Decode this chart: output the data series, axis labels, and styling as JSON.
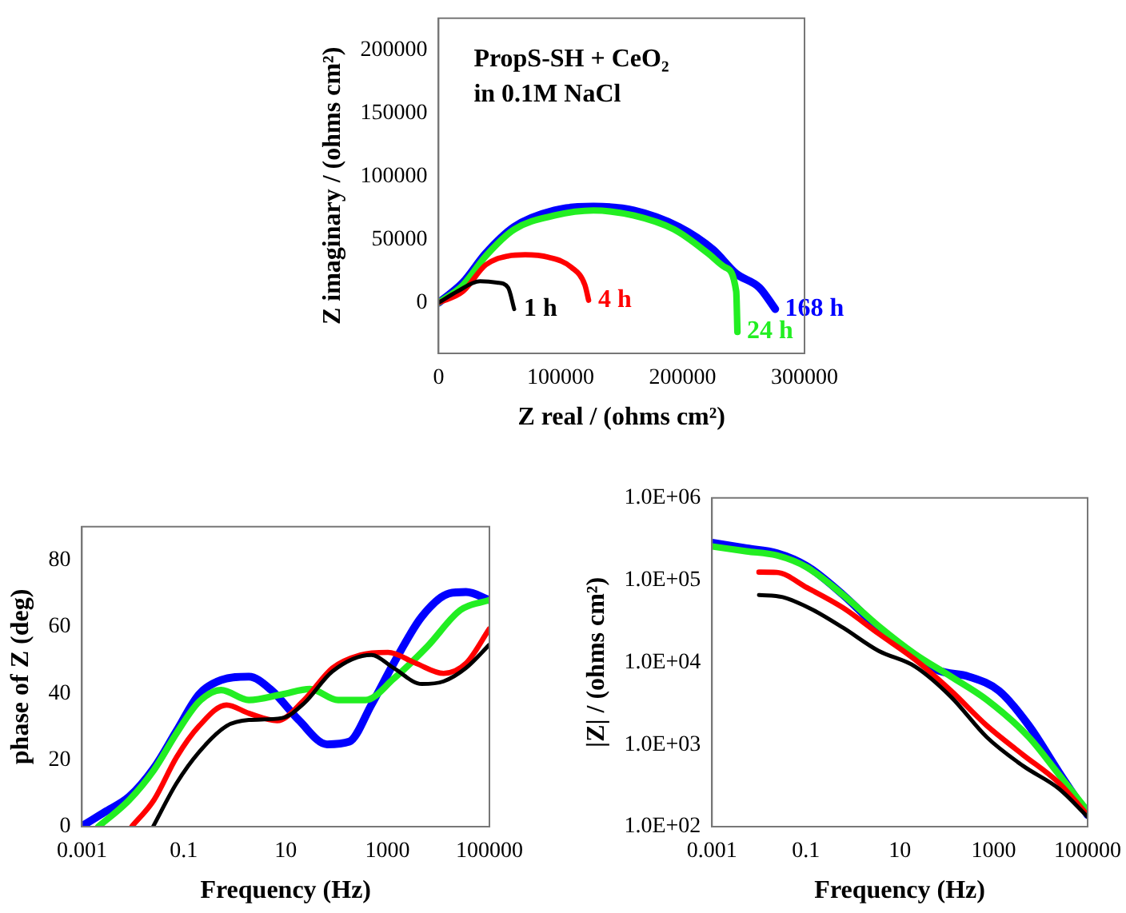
{
  "chart_data": [
    {
      "type": "line",
      "xlabel": "Z real / (ohms cm²)",
      "ylabel": "Z imaginary / (ohms cm²)",
      "annotations": [
        "PropS-SH + CeO₂",
        "in 0.1M NaCl"
      ],
      "xlim": [
        0,
        300000
      ],
      "xticks": [
        0,
        100000,
        200000,
        300000
      ],
      "ylim": [
        -40000,
        225000
      ],
      "yticks": [
        0,
        50000,
        100000,
        150000,
        200000
      ],
      "grid": false,
      "legend": false,
      "series": [
        {
          "name": "1 h",
          "color": "#000000",
          "x": [
            0,
            15400,
            34000,
            48000,
            57000,
            62000
          ],
          "values": [
            0,
            9000,
            17000,
            16000,
            12000,
            -5000
          ]
        },
        {
          "name": "4 h",
          "color": "#ff0000",
          "x": [
            0,
            20000,
            38700,
            57000,
            71000,
            90000,
            109000,
            120000,
            123000
          ],
          "values": [
            0,
            9000,
            30000,
            37000,
            38000,
            36000,
            28000,
            14000,
            2000
          ]
        },
        {
          "name": "24 h",
          "color": "#22ee22",
          "x": [
            0,
            20000,
            38700,
            62000,
            95000,
            127000,
            160000,
            193000,
            221000,
            235000,
            244000,
            245000
          ],
          "values": [
            0,
            14000,
            37000,
            58000,
            69000,
            73000,
            69000,
            58000,
            39000,
            28000,
            9000,
            -23000
          ]
        },
        {
          "name": "168 h",
          "color": "#0000ff",
          "x": [
            0,
            20000,
            38700,
            62000,
            95000,
            127000,
            160000,
            197000,
            225000,
            244000,
            263000,
            276000
          ],
          "values": [
            0,
            16000,
            39000,
            60000,
            73000,
            76000,
            73000,
            60000,
            42000,
            23000,
            12000,
            -5000
          ]
        }
      ]
    },
    {
      "type": "line",
      "xlabel": "Frequency (Hz)",
      "ylabel": "phase of Z (deg)",
      "log": "x",
      "xlim": [
        0.001,
        100000
      ],
      "xticks": [
        0.001,
        0.1,
        10,
        1000,
        100000
      ],
      "ylim": [
        0,
        90
      ],
      "yticks": [
        0,
        20,
        40,
        60,
        80
      ],
      "grid": false,
      "legend": false,
      "series": [
        {
          "color": "#000000",
          "x": [
            0.025,
            0.072,
            0.2,
            0.69,
            1.9,
            8.5,
            23,
            83,
            480,
            1320,
            4700,
            12600,
            34700,
            100000
          ],
          "values": [
            0,
            13,
            22.4,
            30.2,
            32,
            32.6,
            37,
            46.6,
            51.5,
            47.6,
            42.8,
            43.6,
            47.6,
            54.6
          ]
        },
        {
          "color": "#ff0000",
          "x": [
            0.0095,
            0.026,
            0.072,
            0.2,
            0.69,
            1.9,
            6.8,
            23,
            83,
            290,
            1020,
            3630,
            12600,
            34700,
            100000
          ],
          "values": [
            0,
            8,
            20.8,
            30.2,
            36.5,
            34,
            31.8,
            38,
            47.6,
            51.5,
            52.3,
            49,
            46,
            49,
            59.4
          ]
        },
        {
          "color": "#22ee22",
          "x": [
            0.0021,
            0.0085,
            0.026,
            0.072,
            0.2,
            0.54,
            1.9,
            8.5,
            30,
            107,
            370,
            1320,
            6000,
            27000,
            100000
          ],
          "values": [
            0,
            8,
            17,
            28,
            37.5,
            41,
            38,
            39.7,
            41.3,
            38,
            38,
            44.4,
            54,
            65,
            68
          ]
        },
        {
          "color": "#0000ff",
          "x": [
            0.00112,
            0.00275,
            0.0085,
            0.026,
            0.072,
            0.2,
            0.54,
            1.9,
            5.2,
            18,
            65,
            178,
            480,
            1320,
            4700,
            16200,
            34700,
            100000
          ],
          "values": [
            0.6,
            4.3,
            9,
            17.6,
            28.7,
            39.7,
            44,
            45,
            41,
            32,
            24.7,
            25.5,
            36.5,
            49,
            63,
            70,
            70.4,
            68
          ]
        }
      ]
    },
    {
      "type": "line",
      "xlabel": "Frequency (Hz)",
      "ylabel": "|Z| / (ohms cm²)",
      "log": "xy",
      "xlim": [
        0.001,
        100000
      ],
      "xticks": [
        0.001,
        0.1,
        10,
        1000,
        100000
      ],
      "ylim": [
        100,
        1000000
      ],
      "yticks": [
        {
          "value": 100,
          "label": "1.0E+02"
        },
        {
          "value": 1000,
          "label": "1.0E+03"
        },
        {
          "value": 10000,
          "label": "1.0E+04"
        },
        {
          "value": 100000,
          "label": "1.0E+05"
        },
        {
          "value": 1000000,
          "label": "1.0E+06"
        }
      ],
      "grid": false,
      "legend": false,
      "series": [
        {
          "color": "#000000",
          "x": [
            0.01,
            0.032,
            0.14,
            0.62,
            3.5,
            21,
            123,
            710,
            4200,
            24500,
            100000
          ],
          "values": [
            66000,
            62000,
            43500,
            26300,
            13800,
            8900,
            3800,
            1230,
            550,
            290,
            132
          ]
        },
        {
          "color": "#ff0000",
          "x": [
            0.01,
            0.024,
            0.105,
            0.62,
            3.5,
            21,
            123,
            710,
            4200,
            24500,
            100000
          ],
          "values": [
            125000,
            124000,
            81000,
            46000,
            22400,
            10800,
            4500,
            1700,
            750,
            340,
            138
          ]
        },
        {
          "color": "#22ee22",
          "x": [
            0.001,
            0.0055,
            0.024,
            0.105,
            0.62,
            3.5,
            21,
            123,
            710,
            5600,
            24500,
            100000
          ],
          "values": [
            257000,
            224000,
            200000,
            143000,
            66000,
            27700,
            12600,
            6700,
            3500,
            1230,
            430,
            155
          ]
        },
        {
          "color": "#0000ff",
          "x": [
            0.001,
            0.0055,
            0.024,
            0.105,
            0.62,
            3.5,
            21,
            68,
            295,
            1290,
            5600,
            24500,
            100000
          ],
          "values": [
            285000,
            243000,
            213000,
            148000,
            66000,
            26000,
            11700,
            7900,
            6700,
            4500,
            1700,
            460,
            138
          ]
        }
      ]
    }
  ]
}
